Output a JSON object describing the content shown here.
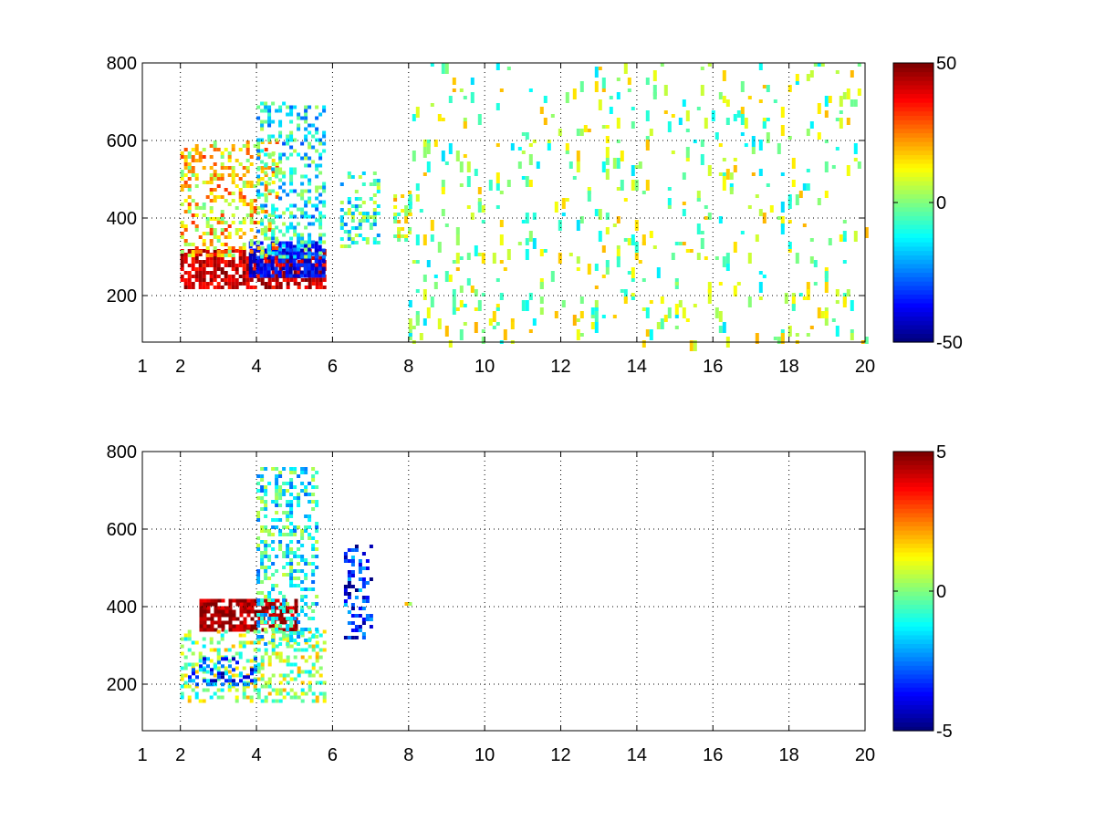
{
  "chart_data": [
    {
      "type": "heatmap",
      "title": "",
      "xlabel": "",
      "ylabel": "",
      "xlim": [
        1,
        20
      ],
      "ylim": [
        80,
        800
      ],
      "xticks": [
        {
          "value": 1,
          "label": "1"
        },
        {
          "value": 2,
          "label": "2"
        },
        {
          "value": 4,
          "label": "4"
        },
        {
          "value": 6,
          "label": "6"
        },
        {
          "value": 8,
          "label": "8"
        },
        {
          "value": 10,
          "label": "10"
        },
        {
          "value": 12,
          "label": "12"
        },
        {
          "value": 14,
          "label": "14"
        },
        {
          "value": 16,
          "label": "16"
        },
        {
          "value": 18,
          "label": "18"
        },
        {
          "value": 20,
          "label": "20"
        }
      ],
      "yticks": [
        {
          "value": 200,
          "label": "200"
        },
        {
          "value": 400,
          "label": "400"
        },
        {
          "value": 600,
          "label": "600"
        },
        {
          "value": 800,
          "label": "800"
        }
      ],
      "grid": true,
      "colormap": "jet",
      "clim": [
        -50,
        50
      ],
      "colorbar_ticks": [
        {
          "value": 50,
          "label": "50"
        },
        {
          "value": 0,
          "label": "0"
        },
        {
          "value": -50,
          "label": "-50"
        }
      ],
      "features": [
        {
          "kind": "band",
          "x": [
            2.0,
            5.8
          ],
          "y": [
            225,
            320
          ],
          "value": 42
        },
        {
          "kind": "band",
          "x": [
            3.8,
            5.8
          ],
          "y": [
            250,
            340
          ],
          "value": -38
        },
        {
          "kind": "blob",
          "x": [
            2.0,
            4.5
          ],
          "y": [
            300,
            600
          ],
          "value": 15
        },
        {
          "kind": "blob",
          "x": [
            4.0,
            5.8
          ],
          "y": [
            300,
            700
          ],
          "value": -12
        },
        {
          "kind": "blob",
          "x": [
            6.2,
            7.2
          ],
          "y": [
            330,
            520
          ],
          "value": -8
        },
        {
          "kind": "blob",
          "x": [
            7.6,
            8.0
          ],
          "y": [
            340,
            480
          ],
          "value": 5
        },
        {
          "kind": "scatter",
          "x": [
            8.0,
            20.0
          ],
          "y": [
            80,
            800
          ],
          "value": 2
        }
      ]
    },
    {
      "type": "heatmap",
      "title": "",
      "xlabel": "",
      "ylabel": "",
      "xlim": [
        1,
        20
      ],
      "ylim": [
        80,
        800
      ],
      "xticks": [
        {
          "value": 1,
          "label": "1"
        },
        {
          "value": 2,
          "label": "2"
        },
        {
          "value": 4,
          "label": "4"
        },
        {
          "value": 6,
          "label": "6"
        },
        {
          "value": 8,
          "label": "8"
        },
        {
          "value": 10,
          "label": "10"
        },
        {
          "value": 12,
          "label": "12"
        },
        {
          "value": 14,
          "label": "14"
        },
        {
          "value": 16,
          "label": "16"
        },
        {
          "value": 18,
          "label": "18"
        },
        {
          "value": 20,
          "label": "20"
        }
      ],
      "yticks": [
        {
          "value": 200,
          "label": "200"
        },
        {
          "value": 400,
          "label": "400"
        },
        {
          "value": 600,
          "label": "600"
        },
        {
          "value": 800,
          "label": "800"
        }
      ],
      "grid": true,
      "colormap": "jet",
      "clim": [
        -5,
        5
      ],
      "colorbar_ticks": [
        {
          "value": 5,
          "label": "5"
        },
        {
          "value": 0,
          "label": "0"
        },
        {
          "value": -5,
          "label": "-5"
        }
      ],
      "features": [
        {
          "kind": "band",
          "x": [
            2.5,
            5.0
          ],
          "y": [
            340,
            420
          ],
          "value": 4.6
        },
        {
          "kind": "blob",
          "x": [
            2.0,
            5.8
          ],
          "y": [
            160,
            340
          ],
          "value": 0.3
        },
        {
          "kind": "blob",
          "x": [
            2.2,
            4.0
          ],
          "y": [
            200,
            270
          ],
          "value": -3
        },
        {
          "kind": "blob",
          "x": [
            4.0,
            5.6
          ],
          "y": [
            300,
            760
          ],
          "value": -1
        },
        {
          "kind": "blob",
          "x": [
            6.3,
            7.0
          ],
          "y": [
            320,
            560
          ],
          "value": -3.5
        },
        {
          "kind": "blob",
          "x": [
            7.8,
            8.0
          ],
          "y": [
            390,
            440
          ],
          "value": 1.5
        }
      ]
    }
  ]
}
